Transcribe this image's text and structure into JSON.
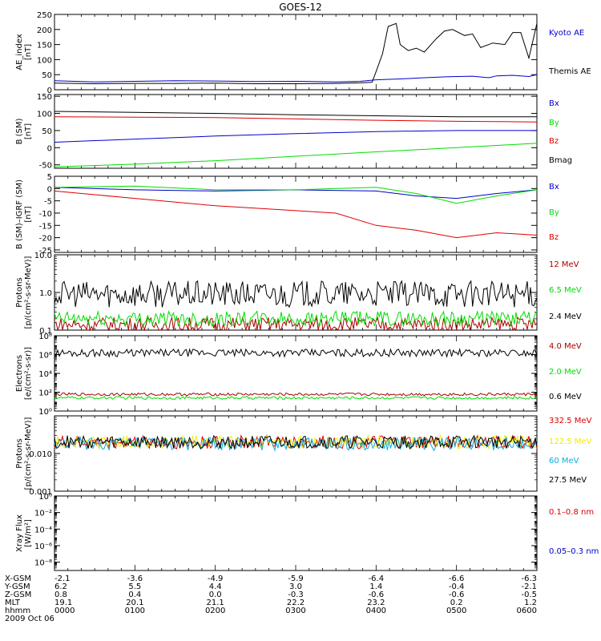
{
  "title": "GOES-12",
  "date_label": "2009 Oct 06",
  "colors": {
    "black": "#000000",
    "blue": "#0000cc",
    "green": "#00dd00",
    "red": "#dd0000",
    "darkred": "#aa0000",
    "cyan": "#11aadd",
    "yellow": "#eeee00"
  },
  "orbit_table": {
    "rows": [
      {
        "label": "X-GSM",
        "values": [
          "-2.1",
          "-3.6",
          "-4.9",
          "-5.9",
          "-6.4",
          "-6.6",
          "-6.3"
        ]
      },
      {
        "label": "Y-GSM",
        "values": [
          "6.2",
          "5.5",
          "4.4",
          "3.0",
          "1.4",
          "-0.4",
          "-2.1"
        ]
      },
      {
        "label": "Z-GSM",
        "values": [
          "0.8",
          "0.4",
          "0.0",
          "-0.3",
          "-0.6",
          "-0.6",
          "-0.5"
        ]
      },
      {
        "label": "MLT",
        "values": [
          "19.1",
          "20.1",
          "21.1",
          "22.2",
          "23.2",
          "0.2",
          "1.2"
        ]
      },
      {
        "label": "hhmm",
        "values": [
          "0000",
          "0100",
          "0200",
          "0300",
          "0400",
          "0500",
          "0600"
        ]
      }
    ]
  },
  "chart_data": [
    {
      "type": "line",
      "ylabel": "AE_index\n[nT]",
      "ylim": [
        0,
        250
      ],
      "yticks": [
        "0",
        "50",
        "100",
        "150",
        "200",
        "250"
      ],
      "series": [
        {
          "name": "Kyoto AE",
          "color": "blue",
          "points": [
            [
              0,
              30
            ],
            [
              0.5,
              26
            ],
            [
              1,
              28
            ],
            [
              1.5,
              30
            ],
            [
              2,
              29
            ],
            [
              2.5,
              27
            ],
            [
              3,
              28
            ],
            [
              3.5,
              26
            ],
            [
              3.8,
              28
            ],
            [
              4,
              33
            ],
            [
              4.3,
              36
            ],
            [
              4.6,
              40
            ],
            [
              4.9,
              43
            ],
            [
              5.2,
              45
            ],
            [
              5.4,
              40
            ],
            [
              5.5,
              46
            ],
            [
              5.7,
              48
            ],
            [
              5.9,
              44
            ],
            [
              6,
              50
            ]
          ]
        },
        {
          "name": "Themis AE",
          "color": "black",
          "points": [
            [
              0,
              22
            ],
            [
              0.5,
              20
            ],
            [
              1,
              21
            ],
            [
              1.5,
              21
            ],
            [
              2,
              22
            ],
            [
              2.5,
              20
            ],
            [
              3,
              20
            ],
            [
              3.5,
              21
            ],
            [
              3.8,
              23
            ],
            [
              3.95,
              25
            ],
            [
              4.0,
              60
            ],
            [
              4.08,
              120
            ],
            [
              4.15,
              210
            ],
            [
              4.25,
              220
            ],
            [
              4.3,
              150
            ],
            [
              4.4,
              130
            ],
            [
              4.5,
              138
            ],
            [
              4.6,
              125
            ],
            [
              4.75,
              170
            ],
            [
              4.85,
              195
            ],
            [
              4.95,
              200
            ],
            [
              5.1,
              180
            ],
            [
              5.2,
              185
            ],
            [
              5.3,
              140
            ],
            [
              5.45,
              155
            ],
            [
              5.6,
              150
            ],
            [
              5.7,
              190
            ],
            [
              5.8,
              190
            ],
            [
              5.9,
              105
            ],
            [
              6,
              220
            ]
          ]
        }
      ]
    },
    {
      "type": "line",
      "ylabel": "B (SM)\n[nT]",
      "ylim": [
        -60,
        155
      ],
      "yticks": [
        "-50",
        "0",
        "50",
        "100",
        "150"
      ],
      "series": [
        {
          "name": "Bx",
          "color": "blue",
          "points": [
            [
              0,
              16
            ],
            [
              1,
              25
            ],
            [
              2,
              34
            ],
            [
              3,
              41
            ],
            [
              4,
              47
            ],
            [
              5,
              50
            ],
            [
              6,
              50
            ]
          ]
        },
        {
          "name": "By",
          "color": "green",
          "points": [
            [
              0,
              -56
            ],
            [
              1,
              -48
            ],
            [
              2,
              -38
            ],
            [
              3,
              -25
            ],
            [
              4,
              -12
            ],
            [
              5,
              0
            ],
            [
              6,
              13
            ]
          ]
        },
        {
          "name": "Bz",
          "color": "red",
          "points": [
            [
              0,
              90
            ],
            [
              1,
              89
            ],
            [
              2,
              88
            ],
            [
              3,
              84
            ],
            [
              4,
              80
            ],
            [
              5,
              77
            ],
            [
              6,
              75
            ]
          ]
        },
        {
          "name": "Bmag",
          "color": "black",
          "points": [
            [
              0,
              106
            ],
            [
              1,
              103
            ],
            [
              2,
              100
            ],
            [
              3,
              96
            ],
            [
              4,
              93
            ],
            [
              5,
              90
            ],
            [
              6,
              90
            ]
          ]
        }
      ]
    },
    {
      "type": "line",
      "ylabel": "B (SM)–IGRF (SM)\n[nT]",
      "ylim": [
        -26,
        5
      ],
      "yticks": [
        "-25",
        "-20",
        "-15",
        "-10",
        "-5",
        "0",
        "5"
      ],
      "series": [
        {
          "name": "Bx",
          "color": "blue",
          "points": [
            [
              0,
              0.5
            ],
            [
              1,
              -0.5
            ],
            [
              2,
              -1
            ],
            [
              3,
              -0.5
            ],
            [
              4,
              -1
            ],
            [
              4.5,
              -3
            ],
            [
              5,
              -4
            ],
            [
              5.5,
              -2
            ],
            [
              6,
              -0.5
            ]
          ]
        },
        {
          "name": "By",
          "color": "green",
          "points": [
            [
              0,
              0.5
            ],
            [
              1,
              1
            ],
            [
              2,
              -0.5
            ],
            [
              3,
              -0.5
            ],
            [
              4,
              0.5
            ],
            [
              4.5,
              -2
            ],
            [
              5,
              -6
            ],
            [
              5.5,
              -3
            ],
            [
              6,
              -0.5
            ]
          ]
        },
        {
          "name": "Bz",
          "color": "red",
          "points": [
            [
              0,
              -1
            ],
            [
              1,
              -4
            ],
            [
              2,
              -7
            ],
            [
              3,
              -9
            ],
            [
              3.5,
              -10
            ],
            [
              4,
              -15
            ],
            [
              4.5,
              -17
            ],
            [
              5,
              -20
            ],
            [
              5.5,
              -18
            ],
            [
              6,
              -19
            ]
          ]
        }
      ]
    },
    {
      "type": "line",
      "ylabel": "Protons\n[p/(cm²-s-sr-MeV)]",
      "log": true,
      "ylim": [
        0.1,
        10
      ],
      "yticks": [
        "0.1",
        "1.0",
        "10.0"
      ],
      "series": [
        {
          "name": "12 MeV",
          "color": "darkred"
        },
        {
          "name": "6.5 MeV",
          "color": "green"
        },
        {
          "name": "2.4 MeV",
          "color": "black"
        }
      ]
    },
    {
      "type": "line",
      "ylabel": "Electrons\n[e/(cm²-s-sr)]",
      "log": true,
      "ylim": [
        1,
        100000000
      ],
      "yticks": [
        "10⁰",
        "10²",
        "10⁴",
        "10⁶",
        "10⁸"
      ],
      "series": [
        {
          "name": "4.0 MeV",
          "color": "darkred"
        },
        {
          "name": "2.0 MeV",
          "color": "green"
        },
        {
          "name": "0.6 MeV",
          "color": "black"
        }
      ]
    },
    {
      "type": "line",
      "ylabel": "Protons\n[p/(cm²-s-sr-MeV)]",
      "log": true,
      "ylim": [
        0.001,
        0.1
      ],
      "yticks": [
        "0.001",
        "0.010"
      ],
      "series": [
        {
          "name": "332.5 MeV",
          "color": "red"
        },
        {
          "name": "122.5 MeV",
          "color": "yellow"
        },
        {
          "name": "60 MeV",
          "color": "cyan"
        },
        {
          "name": "27.5 MeV",
          "color": "black"
        }
      ]
    },
    {
      "type": "line",
      "ylabel": "Xray Flux\n[W/m²]",
      "log": true,
      "ylim": [
        1e-09,
        1
      ],
      "yticks": [
        "10⁻⁸",
        "10⁻⁶",
        "10⁻⁴",
        "10⁻²",
        "10⁰"
      ],
      "series": [
        {
          "name": "0.1–0.8 nm",
          "color": "red"
        },
        {
          "name": "0.05–0.3 nm",
          "color": "blue"
        }
      ]
    }
  ]
}
